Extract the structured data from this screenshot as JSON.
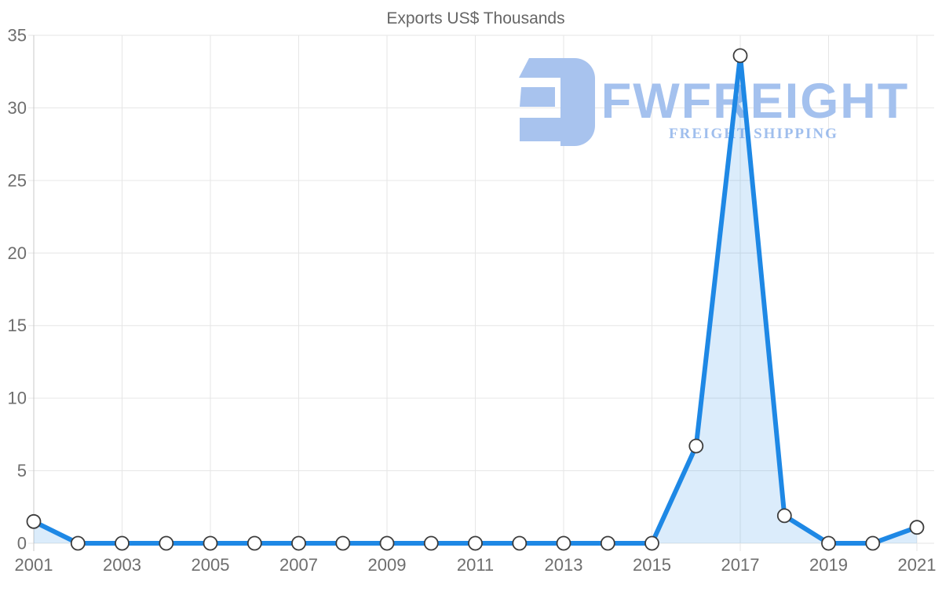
{
  "title": "Exports US$ Thousands",
  "watermark": {
    "brand": "FWFREIGHT",
    "tagline": "FREIGHT SHIPPING",
    "logo_icon": "fwfreight-e-mark",
    "logo_color": "#a8c3ee"
  },
  "colors": {
    "line": "#1e88e5",
    "area_fill": "rgba(30,136,229,0.16)",
    "marker_fill": "#ffffff",
    "marker_stroke": "#3c3c3c",
    "grid": "#e6e6e6",
    "axis_line": "#c9c9c9",
    "tick_label": "#6e6e6e",
    "title": "#666666"
  },
  "chart_data": {
    "type": "area",
    "title": "Exports US$ Thousands",
    "x": [
      2001,
      2002,
      2003,
      2004,
      2005,
      2006,
      2007,
      2008,
      2009,
      2010,
      2011,
      2012,
      2013,
      2014,
      2015,
      2016,
      2017,
      2018,
      2019,
      2020,
      2021
    ],
    "series": [
      {
        "name": "Exports US$ Thousands",
        "values": [
          1.5,
          0,
          0,
          0,
          0,
          0,
          0,
          0,
          0,
          0,
          0,
          0,
          0,
          0,
          0,
          6.7,
          33.6,
          1.9,
          0,
          0,
          1.1
        ]
      }
    ],
    "xlabel": "",
    "ylabel": "",
    "ylim": [
      0,
      35
    ],
    "yticks": [
      0,
      5,
      10,
      15,
      20,
      25,
      30,
      35
    ],
    "xticks": [
      2001,
      2003,
      2005,
      2007,
      2009,
      2011,
      2013,
      2015,
      2017,
      2019,
      2021
    ],
    "grid": true,
    "legend": "none",
    "marker": "circle"
  }
}
